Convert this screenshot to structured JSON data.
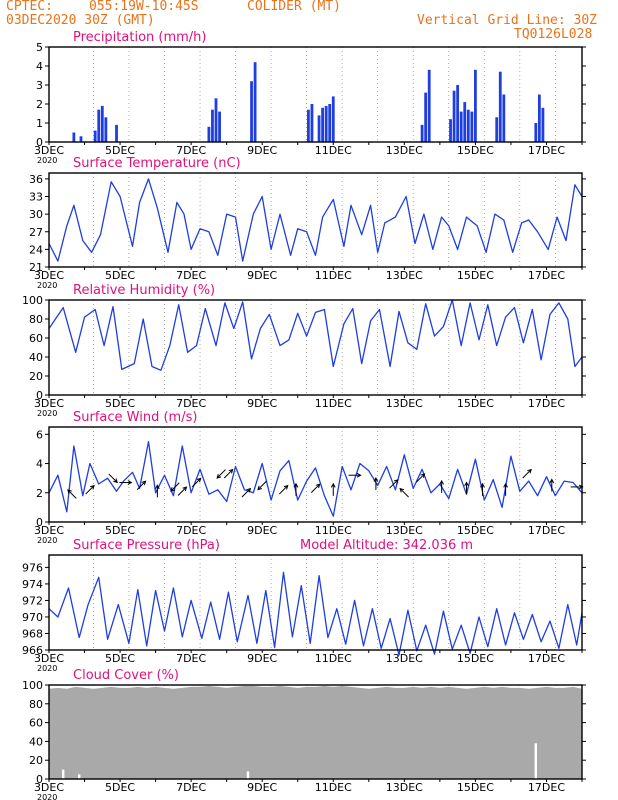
{
  "header": {
    "source": "CPTEC:",
    "location": "055:19W-10:45S",
    "city": "COLIDER (MT)",
    "date": "03DEC2020 30Z (GMT)",
    "grid_note": "Vertical Grid Line: 30Z",
    "code": "TQ0126L028"
  },
  "colors": {
    "header": "#e8731a",
    "title": "#e0107c",
    "series": "#1f3ee0",
    "cloud": "#a9a9a9",
    "axis": "#000000",
    "grid": "#888888"
  },
  "x_axis": {
    "start_day": 3,
    "end_day": 18,
    "tick_labels": [
      "3DEC",
      "5DEC",
      "7DEC",
      "9DEC",
      "11DEC",
      "13DEC",
      "15DEC",
      "17DEC"
    ],
    "corner_label": "2020",
    "vertical_grid": "every day at 30Z (06Z)"
  },
  "chart_data": [
    {
      "type": "bar",
      "title": "Precipitation (mm/h)",
      "ylim": [
        0,
        5
      ],
      "y_ticks": [
        0,
        1,
        2,
        3,
        4,
        5
      ],
      "x_unit": "day of December",
      "x": [
        3.7,
        3.9,
        4.3,
        4.4,
        4.5,
        4.6,
        4.9,
        7.5,
        7.6,
        7.7,
        7.8,
        8.7,
        8.8,
        10.3,
        10.4,
        10.6,
        10.7,
        10.8,
        10.9,
        11.0,
        13.5,
        13.6,
        13.7,
        14.3,
        14.4,
        14.5,
        14.6,
        14.7,
        14.8,
        14.9,
        15.0,
        15.6,
        15.7,
        15.8,
        16.7,
        16.8,
        16.9
      ],
      "values": [
        0.5,
        0.3,
        0.6,
        1.7,
        1.9,
        1.3,
        0.9,
        0.8,
        1.7,
        2.3,
        1.6,
        3.2,
        4.2,
        1.7,
        2.0,
        1.4,
        1.8,
        1.9,
        2.0,
        2.4,
        0.9,
        2.6,
        3.8,
        1.2,
        2.7,
        3.0,
        1.6,
        2.1,
        1.7,
        1.6,
        3.8,
        1.3,
        3.7,
        2.5,
        1.0,
        2.5,
        1.8
      ]
    },
    {
      "type": "line",
      "title": "Surface Temperature (nC)",
      "ylim": [
        21,
        37
      ],
      "y_ticks": [
        21,
        24,
        27,
        30,
        33,
        36
      ],
      "x_unit": "day of December",
      "x": [
        3.0,
        3.25,
        3.5,
        3.7,
        3.95,
        4.2,
        4.45,
        4.75,
        5.0,
        5.35,
        5.55,
        5.8,
        6.05,
        6.35,
        6.6,
        6.8,
        7.0,
        7.25,
        7.5,
        7.75,
        8.0,
        8.25,
        8.45,
        8.75,
        9.0,
        9.25,
        9.5,
        9.8,
        10.0,
        10.25,
        10.5,
        10.7,
        11.0,
        11.3,
        11.5,
        11.8,
        12.05,
        12.25,
        12.45,
        12.75,
        13.05,
        13.3,
        13.55,
        13.8,
        14.05,
        14.25,
        14.5,
        14.75,
        15.05,
        15.3,
        15.55,
        15.8,
        16.05,
        16.3,
        16.5,
        16.75,
        17.05,
        17.3,
        17.55,
        17.8,
        18.0
      ],
      "values": [
        25.0,
        22.0,
        28.0,
        31.5,
        25.5,
        23.5,
        26.5,
        35.5,
        33.0,
        24.5,
        32.0,
        36.0,
        31.0,
        23.5,
        32.0,
        30.0,
        24.0,
        27.5,
        27.0,
        23.0,
        30.0,
        29.5,
        22.0,
        30.0,
        33.0,
        24.0,
        30.0,
        23.0,
        27.5,
        27.0,
        23.0,
        29.5,
        32.5,
        24.5,
        31.5,
        26.5,
        31.5,
        23.5,
        28.5,
        29.5,
        33.0,
        25.0,
        30.0,
        24.0,
        29.5,
        28.0,
        24.0,
        29.5,
        28.0,
        23.5,
        30.0,
        29.0,
        23.5,
        28.5,
        29.0,
        27.0,
        24.0,
        29.5,
        25.5,
        35.0,
        33.0
      ]
    },
    {
      "type": "line",
      "title": "Relative Humidity (%)",
      "ylim": [
        0,
        100
      ],
      "y_ticks": [
        0,
        20,
        40,
        60,
        80,
        100
      ],
      "x_unit": "day of December",
      "x": [
        3.0,
        3.4,
        3.75,
        4.0,
        4.3,
        4.55,
        4.8,
        5.05,
        5.4,
        5.65,
        5.9,
        6.15,
        6.4,
        6.65,
        6.9,
        7.15,
        7.4,
        7.7,
        7.95,
        8.2,
        8.45,
        8.7,
        8.95,
        9.2,
        9.5,
        9.75,
        10.0,
        10.25,
        10.5,
        10.75,
        11.0,
        11.3,
        11.55,
        11.8,
        12.05,
        12.3,
        12.6,
        12.85,
        13.1,
        13.35,
        13.6,
        13.85,
        14.1,
        14.35,
        14.6,
        14.85,
        15.1,
        15.35,
        15.6,
        15.85,
        16.1,
        16.35,
        16.6,
        16.85,
        17.1,
        17.35,
        17.6,
        17.8,
        18.0
      ],
      "values": [
        70,
        92,
        45,
        82,
        90,
        52,
        93,
        27,
        33,
        80,
        30,
        26,
        52,
        95,
        45,
        52,
        91,
        52,
        97,
        70,
        98,
        38,
        70,
        85,
        52,
        58,
        86,
        62,
        87,
        90,
        30,
        75,
        91,
        33,
        78,
        90,
        30,
        88,
        55,
        48,
        96,
        62,
        72,
        100,
        52,
        97,
        58,
        95,
        52,
        82,
        92,
        55,
        90,
        37,
        85,
        97,
        80,
        30,
        40
      ]
    },
    {
      "type": "line",
      "title": "Surface Wind (m/s)",
      "ylim": [
        0,
        6.5
      ],
      "y_ticks": [
        0,
        2,
        4,
        6
      ],
      "x_unit": "day of December",
      "x": [
        3.0,
        3.25,
        3.5,
        3.7,
        3.95,
        4.15,
        4.4,
        4.65,
        4.9,
        5.1,
        5.35,
        5.55,
        5.8,
        6.0,
        6.25,
        6.5,
        6.75,
        7.0,
        7.25,
        7.5,
        7.75,
        8.0,
        8.25,
        8.5,
        8.75,
        9.0,
        9.25,
        9.5,
        9.75,
        10.0,
        10.25,
        10.5,
        10.75,
        11.0,
        11.25,
        11.5,
        11.75,
        12.0,
        12.25,
        12.5,
        12.75,
        13.0,
        13.25,
        13.5,
        13.75,
        14.0,
        14.25,
        14.5,
        14.75,
        15.0,
        15.25,
        15.5,
        15.75,
        16.0,
        16.25,
        16.5,
        16.75,
        17.0,
        17.25,
        17.5,
        17.75,
        18.0
      ],
      "values": [
        2.0,
        3.2,
        0.7,
        5.2,
        1.8,
        4.0,
        2.6,
        3.0,
        2.1,
        2.8,
        3.4,
        2.3,
        5.5,
        2.0,
        3.2,
        1.8,
        5.2,
        2.0,
        3.6,
        1.9,
        2.2,
        1.4,
        3.8,
        2.2,
        2.0,
        4.0,
        1.5,
        3.5,
        4.2,
        1.5,
        2.8,
        3.7,
        1.8,
        0.4,
        3.8,
        2.2,
        4.0,
        3.5,
        2.5,
        3.8,
        2.2,
        4.6,
        2.3,
        3.6,
        2.0,
        2.6,
        1.6,
        3.6,
        1.9,
        4.3,
        1.5,
        2.9,
        1.0,
        4.5,
        2.1,
        2.8,
        1.8,
        3.1,
        1.8,
        2.8,
        2.7,
        2.0
      ],
      "arrows": [
        {
          "day": 3.65,
          "speed": 1.9,
          "dir": "NW"
        },
        {
          "day": 4.15,
          "speed": 2.2,
          "dir": "NE"
        },
        {
          "day": 4.8,
          "speed": 3.0,
          "dir": "SE"
        },
        {
          "day": 5.15,
          "speed": 2.7,
          "dir": "E"
        },
        {
          "day": 5.6,
          "speed": 2.5,
          "dir": "NE"
        },
        {
          "day": 6.05,
          "speed": 2.1,
          "dir": "N"
        },
        {
          "day": 6.55,
          "speed": 2.4,
          "dir": "SW"
        },
        {
          "day": 6.75,
          "speed": 2.1,
          "dir": "NE"
        },
        {
          "day": 7.15,
          "speed": 2.7,
          "dir": "NE"
        },
        {
          "day": 7.85,
          "speed": 3.3,
          "dir": "SW"
        },
        {
          "day": 8.05,
          "speed": 3.3,
          "dir": "NE"
        },
        {
          "day": 8.55,
          "speed": 2.0,
          "dir": "NE"
        },
        {
          "day": 9.0,
          "speed": 2.5,
          "dir": "SW"
        },
        {
          "day": 9.6,
          "speed": 2.2,
          "dir": "NE"
        },
        {
          "day": 9.95,
          "speed": 2.2,
          "dir": "N"
        },
        {
          "day": 10.5,
          "speed": 2.3,
          "dir": "NE"
        },
        {
          "day": 11.0,
          "speed": 2.2,
          "dir": "N"
        },
        {
          "day": 11.6,
          "speed": 3.2,
          "dir": "E"
        },
        {
          "day": 12.2,
          "speed": 2.6,
          "dir": "N"
        },
        {
          "day": 12.7,
          "speed": 2.6,
          "dir": "NE"
        },
        {
          "day": 13.0,
          "speed": 2.0,
          "dir": "NW"
        },
        {
          "day": 13.45,
          "speed": 3.0,
          "dir": "NE"
        },
        {
          "day": 14.05,
          "speed": 2.4,
          "dir": "N"
        },
        {
          "day": 14.75,
          "speed": 2.3,
          "dir": "N"
        },
        {
          "day": 15.2,
          "speed": 2.2,
          "dir": "N"
        },
        {
          "day": 15.85,
          "speed": 2.2,
          "dir": "N"
        },
        {
          "day": 16.45,
          "speed": 3.3,
          "dir": "NE"
        },
        {
          "day": 17.15,
          "speed": 2.5,
          "dir": "N"
        },
        {
          "day": 17.85,
          "speed": 2.4,
          "dir": "E"
        }
      ]
    },
    {
      "type": "line",
      "title": "Surface Pressure (hPa)",
      "annotation": "Model Altitude: 342.036 m",
      "ylim": [
        966,
        977.5
      ],
      "y_ticks": [
        966,
        968,
        970,
        972,
        974,
        976
      ],
      "x_unit": "day of December",
      "x": [
        3.0,
        3.25,
        3.55,
        3.85,
        4.1,
        4.4,
        4.65,
        4.95,
        5.25,
        5.5,
        5.75,
        6.0,
        6.25,
        6.5,
        6.75,
        7.0,
        7.3,
        7.55,
        7.8,
        8.05,
        8.3,
        8.6,
        8.85,
        9.1,
        9.35,
        9.6,
        9.85,
        10.1,
        10.35,
        10.6,
        10.85,
        11.1,
        11.35,
        11.6,
        11.85,
        12.1,
        12.35,
        12.6,
        12.85,
        13.1,
        13.35,
        13.6,
        13.85,
        14.1,
        14.35,
        14.6,
        14.85,
        15.1,
        15.35,
        15.6,
        15.85,
        16.1,
        16.35,
        16.6,
        16.85,
        17.1,
        17.35,
        17.6,
        17.85,
        18.0
      ],
      "values": [
        971.0,
        970.0,
        973.5,
        967.5,
        971.5,
        974.8,
        967.3,
        971.5,
        966.8,
        973.3,
        966.5,
        973.2,
        968.3,
        973.5,
        967.6,
        972.0,
        967.4,
        971.8,
        967.3,
        973.0,
        967.0,
        972.6,
        966.8,
        973.2,
        966.3,
        975.4,
        967.6,
        973.8,
        966.8,
        975.0,
        967.5,
        971.0,
        966.7,
        972.0,
        966.5,
        971.0,
        966.2,
        969.8,
        965.4,
        970.8,
        965.9,
        969.0,
        965.5,
        970.7,
        966.1,
        969.0,
        965.6,
        970.0,
        966.4,
        971.0,
        966.6,
        970.5,
        967.3,
        970.3,
        967.0,
        969.5,
        966.2,
        971.5,
        966.6,
        970.5
      ]
    },
    {
      "type": "bar",
      "title": "Cloud Cover (%)",
      "ylim": [
        0,
        100
      ],
      "y_ticks": [
        0,
        20,
        40,
        60,
        80,
        100
      ],
      "x_unit": "day of December",
      "x": [
        3.0,
        3.25,
        3.5,
        3.75,
        4.0,
        4.25,
        4.5,
        4.75,
        5.0,
        5.25,
        5.5,
        5.75,
        6.0,
        6.25,
        6.5,
        6.75,
        7.0,
        7.25,
        7.5,
        7.75,
        8.0,
        8.25,
        8.5,
        8.75,
        9.0,
        9.25,
        9.5,
        9.75,
        10.0,
        10.25,
        10.5,
        10.75,
        11.0,
        11.25,
        11.5,
        11.75,
        12.0,
        12.25,
        12.5,
        12.75,
        13.0,
        13.25,
        13.5,
        13.75,
        14.0,
        14.25,
        14.5,
        14.75,
        15.0,
        15.25,
        15.5,
        15.75,
        16.0,
        16.25,
        16.5,
        16.75,
        17.0,
        17.25,
        17.5,
        17.75,
        18.0
      ],
      "values": [
        96,
        97,
        96,
        98,
        97,
        96,
        97,
        98,
        97,
        97,
        98,
        97,
        98,
        97,
        96,
        97,
        98,
        98,
        99,
        98,
        97,
        98,
        99,
        99,
        98,
        98,
        99,
        98,
        97,
        98,
        98,
        99,
        98,
        99,
        98,
        97,
        96,
        97,
        98,
        97,
        97,
        98,
        97,
        98,
        97,
        98,
        97,
        96,
        97,
        98,
        97,
        98,
        97,
        97,
        96,
        97,
        98,
        97,
        97,
        98,
        96
      ],
      "notable_dips": [
        {
          "day": 3.4,
          "value": 10
        },
        {
          "day": 3.85,
          "value": 5
        },
        {
          "day": 8.6,
          "value": 8
        },
        {
          "day": 16.7,
          "value": 38
        }
      ]
    }
  ]
}
